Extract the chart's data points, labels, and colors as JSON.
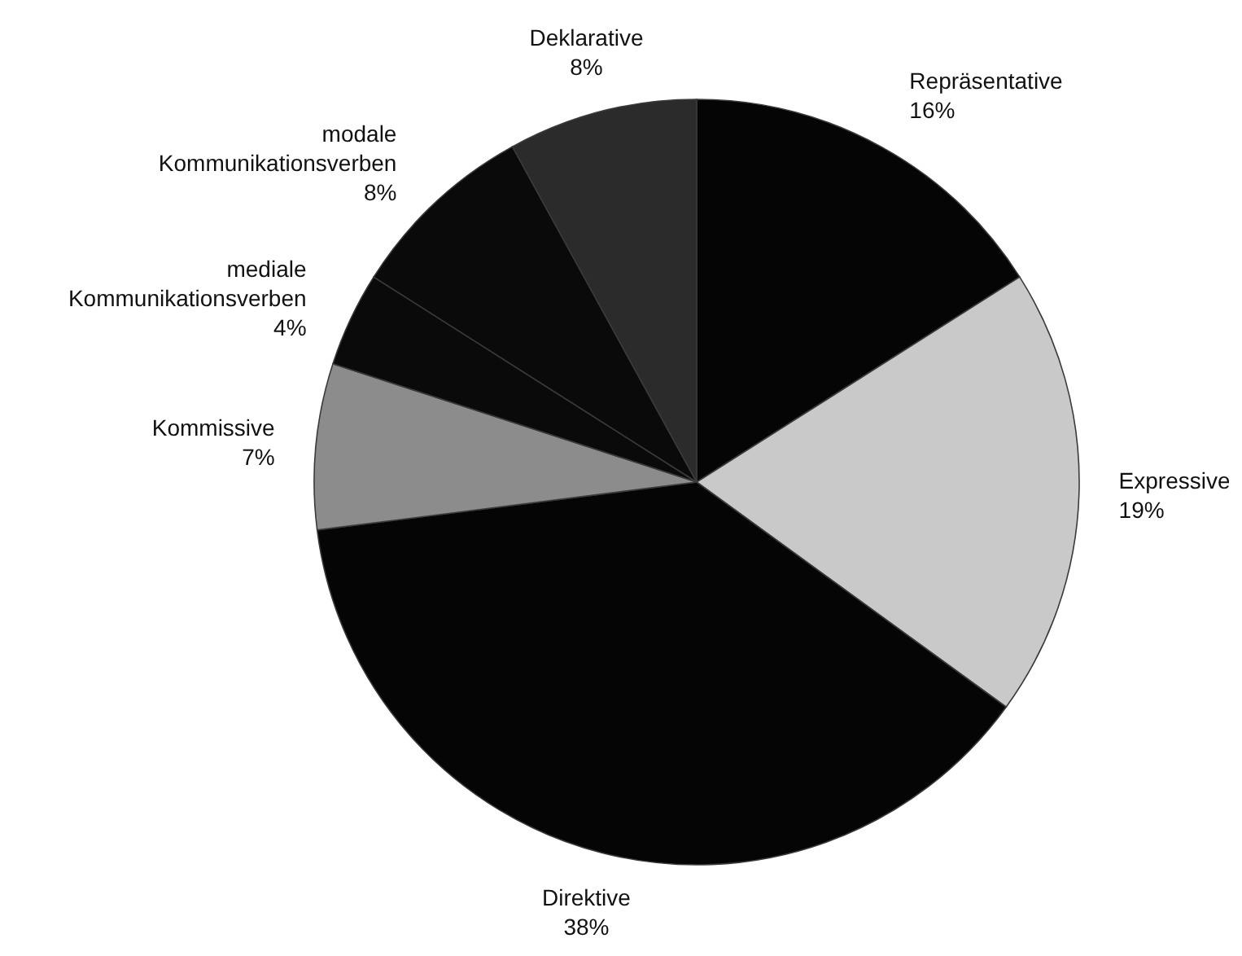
{
  "chart_data": {
    "type": "pie",
    "categories": [
      "Repräsentative",
      "Expressive",
      "Direktive",
      "Kommissive",
      "mediale Kommunikationsverben",
      "modale Kommunikationsverben",
      "Deklarative"
    ],
    "values": [
      16,
      19,
      38,
      7,
      4,
      8,
      8
    ],
    "colors": [
      "#050505",
      "#c9c9c9",
      "#050505",
      "#8c8c8c",
      "#0a0a0a",
      "#0a0a0a",
      "#2b2b2b"
    ],
    "value_labels": [
      "16%",
      "19%",
      "38%",
      "7%",
      "4%",
      "8%",
      "8%"
    ]
  }
}
